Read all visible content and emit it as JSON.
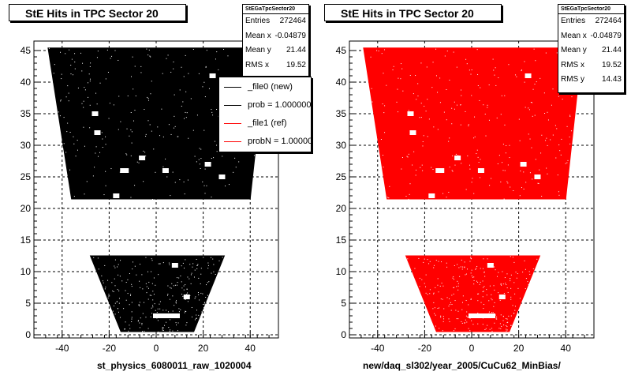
{
  "chart_data": [
    {
      "type": "scatter",
      "title": "StE Hits in TPC Sector 20",
      "xlabel": "st_physics_6080011_raw_1020004",
      "ylabel": "",
      "xlim": [
        -52,
        52
      ],
      "ylim": [
        -0.5,
        46.5
      ],
      "x_ticks": [
        -40,
        -20,
        0,
        20,
        40
      ],
      "y_ticks": [
        0,
        5,
        10,
        15,
        20,
        25,
        30,
        35,
        40,
        45
      ],
      "grid": true,
      "marker_color": "#000000",
      "series": [
        {
          "name": "_file0 (new)",
          "regions": [
            {
              "y_min": 21.5,
              "y_max": 45.4,
              "x_left_at_min": -36,
              "x_left_at_max": -46,
              "x_right_at_min": 40,
              "x_right_at_max": 47
            },
            {
              "y_min": 0.5,
              "y_max": 12.5,
              "x_left_at_min": -15,
              "x_left_at_max": -28,
              "x_right_at_min": 16,
              "x_right_at_max": 29
            }
          ],
          "holes": [
            [
              24,
              41
            ],
            [
              -26,
              35
            ],
            [
              -25,
              32
            ],
            [
              -14,
              26
            ],
            [
              -6,
              28
            ],
            [
              4,
              26
            ],
            [
              22,
              27
            ],
            [
              -17,
              22
            ],
            [
              -13,
              26
            ],
            [
              -26,
              7
            ],
            [
              8,
              11
            ],
            [
              13,
              6
            ],
            [
              0,
              3
            ],
            [
              28,
              25
            ]
          ]
        }
      ],
      "stats": {
        "name": "StEGaTpcSector20",
        "entries": "272464",
        "mean_x": "-0.04879",
        "mean_y": "21.44",
        "rms_x": "19.52"
      },
      "legend": {
        "placement": "top-right",
        "entries": [
          {
            "label": "_file0 (new)",
            "color": "#000000"
          },
          {
            "label": "prob = 1.000000",
            "color": "#000000"
          },
          {
            "label": "_file1 (ref)",
            "color": "#ff0000"
          },
          {
            "label": "probN = 1.000000",
            "color": "#ff0000"
          }
        ]
      }
    },
    {
      "type": "scatter",
      "title": "StE Hits in TPC Sector 20",
      "xlabel": "new/daq_sl302/year_2005/CuCu62_MinBias/",
      "ylabel": "",
      "xlim": [
        -52,
        52
      ],
      "ylim": [
        -0.5,
        46.5
      ],
      "x_ticks": [
        -40,
        -20,
        0,
        20,
        40
      ],
      "y_ticks": [
        0,
        5,
        10,
        15,
        20,
        25,
        30,
        35,
        40,
        45
      ],
      "grid": true,
      "marker_color": "#ff0000",
      "series": [
        {
          "name": "_file1 (ref)",
          "regions": [
            {
              "y_min": 21.5,
              "y_max": 45.4,
              "x_left_at_min": -36,
              "x_left_at_max": -46,
              "x_right_at_min": 40,
              "x_right_at_max": 47
            },
            {
              "y_min": 0.5,
              "y_max": 12.5,
              "x_left_at_min": -15,
              "x_left_at_max": -28,
              "x_right_at_min": 16,
              "x_right_at_max": 29
            }
          ],
          "holes": [
            [
              24,
              41
            ],
            [
              -26,
              35
            ],
            [
              -25,
              32
            ],
            [
              -14,
              26
            ],
            [
              -6,
              28
            ],
            [
              4,
              26
            ],
            [
              22,
              27
            ],
            [
              -17,
              22
            ],
            [
              -13,
              26
            ],
            [
              -26,
              7
            ],
            [
              8,
              11
            ],
            [
              13,
              6
            ],
            [
              0,
              3
            ],
            [
              28,
              25
            ]
          ]
        }
      ],
      "stats": {
        "name": "StEGaTpcSector20",
        "entries": "272464",
        "mean_x": "-0.04879",
        "mean_y": "21.44",
        "rms_x": "19.52",
        "rms_y": "14.43"
      }
    }
  ],
  "stats_labels": {
    "entries": "Entries",
    "mean_x": "Mean x",
    "mean_y": "Mean y",
    "rms_x": "RMS x",
    "rms_y": "RMS y"
  }
}
